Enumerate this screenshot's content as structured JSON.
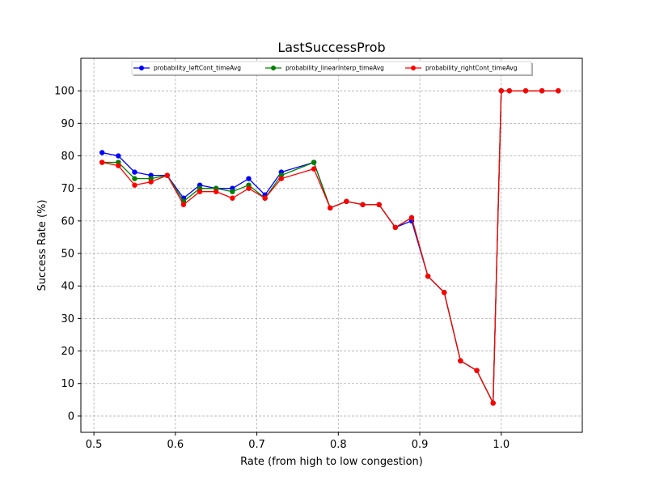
{
  "chart_data": {
    "type": "line",
    "title": "LastSuccessProb",
    "xlabel": "Rate (from high to low congestion)",
    "ylabel": "Success Rate (%)",
    "xlim": [
      0.484,
      1.0995
    ],
    "ylim": [
      -5,
      110
    ],
    "x_ticks": [
      0.5,
      0.6,
      0.7,
      0.8,
      0.9,
      1.0
    ],
    "x_tick_labels": [
      "0.5",
      "0.6",
      "0.7",
      "0.8",
      "0.9",
      "1.0"
    ],
    "y_ticks": [
      0,
      10,
      20,
      30,
      40,
      50,
      60,
      70,
      80,
      90,
      100
    ],
    "y_tick_labels": [
      "0",
      "10",
      "20",
      "30",
      "40",
      "50",
      "60",
      "70",
      "80",
      "90",
      "100"
    ],
    "grid": true,
    "legend_position": "top-center",
    "x": [
      0.51,
      0.53,
      0.55,
      0.57,
      0.59,
      0.61,
      0.63,
      0.65,
      0.67,
      0.69,
      0.71,
      0.73,
      0.77,
      0.79,
      0.81,
      0.83,
      0.85,
      0.87,
      0.89,
      0.91,
      0.93,
      0.95,
      0.97,
      0.99,
      1.0,
      1.01,
      1.03,
      1.05,
      1.07
    ],
    "series": [
      {
        "name": "probability_leftCont_timeAvg",
        "color": "#0000ff",
        "values": [
          81,
          80,
          75,
          74,
          74,
          67,
          71,
          70,
          70,
          73,
          68,
          75,
          78,
          64,
          66,
          65,
          65,
          58,
          60,
          43,
          38,
          17,
          14,
          4,
          100,
          100,
          100,
          100,
          100
        ]
      },
      {
        "name": "probability_linearInterp_timeAvg",
        "color": "#008000",
        "values": [
          78,
          78,
          73,
          73,
          74,
          66,
          70,
          70,
          69,
          71,
          67,
          74,
          78,
          64,
          66,
          65,
          65,
          58,
          61,
          43,
          38,
          17,
          14,
          4,
          100,
          100,
          100,
          100,
          100
        ]
      },
      {
        "name": "probability_rightCont_timeAvg",
        "color": "#ff0000",
        "values": [
          78,
          77,
          71,
          72,
          74,
          65,
          69,
          69,
          67,
          70,
          67,
          73,
          76,
          64,
          66,
          65,
          65,
          58,
          61,
          43,
          38,
          17,
          14,
          4,
          100,
          100,
          100,
          100,
          100
        ]
      }
    ]
  }
}
